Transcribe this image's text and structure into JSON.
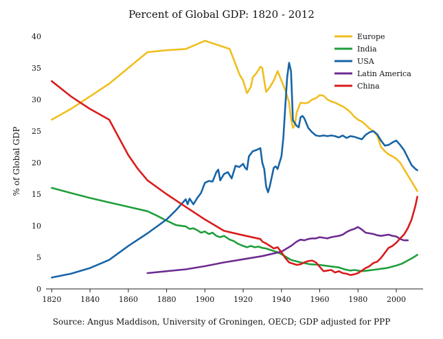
{
  "chart_data": {
    "type": "line",
    "title": "Percent of Global GDP: 1820 - 2012",
    "xlabel": "",
    "ylabel": "% of Global GDP",
    "source": "Source: Angus Maddison, University of Groningen, OECD; GDP adjusted for PPP",
    "xlim": [
      1817,
      2014
    ],
    "ylim": [
      0,
      40
    ],
    "x_ticks": [
      1820,
      1840,
      1860,
      1880,
      1900,
      1920,
      1940,
      1960,
      1980,
      2000
    ],
    "y_ticks": [
      0,
      5,
      10,
      15,
      20,
      25,
      30,
      35,
      40
    ],
    "grid": false,
    "legend_position": "top-right",
    "series": [
      {
        "name": "Europe",
        "color": "#f0be1e",
        "points": [
          [
            1820,
            26.8
          ],
          [
            1830,
            28.5
          ],
          [
            1840,
            30.5
          ],
          [
            1850,
            32.5
          ],
          [
            1860,
            35
          ],
          [
            1870,
            37.5
          ],
          [
            1880,
            37.8
          ],
          [
            1890,
            38
          ],
          [
            1900,
            39.3
          ],
          [
            1913,
            38
          ],
          [
            1918,
            34
          ],
          [
            1920,
            33
          ],
          [
            1922,
            31
          ],
          [
            1924,
            32
          ],
          [
            1925,
            33.5
          ],
          [
            1927,
            34.2
          ],
          [
            1929,
            35.2
          ],
          [
            1930,
            35
          ],
          [
            1931,
            33
          ],
          [
            1932,
            31.2
          ],
          [
            1934,
            32
          ],
          [
            1936,
            33
          ],
          [
            1938,
            34.5
          ],
          [
            1940,
            33
          ],
          [
            1942,
            31.5
          ],
          [
            1944,
            29.5
          ],
          [
            1945,
            27
          ],
          [
            1946,
            25.5
          ],
          [
            1947,
            26
          ],
          [
            1948,
            28
          ],
          [
            1950,
            29.5
          ],
          [
            1952,
            29.4
          ],
          [
            1954,
            29.5
          ],
          [
            1956,
            30
          ],
          [
            1958,
            30.2
          ],
          [
            1960,
            30.7
          ],
          [
            1962,
            30.6
          ],
          [
            1964,
            30
          ],
          [
            1966,
            29.7
          ],
          [
            1968,
            29.5
          ],
          [
            1970,
            29.2
          ],
          [
            1972,
            28.9
          ],
          [
            1974,
            28.5
          ],
          [
            1976,
            28
          ],
          [
            1978,
            27.3
          ],
          [
            1980,
            26.8
          ],
          [
            1982,
            26.5
          ],
          [
            1984,
            26
          ],
          [
            1986,
            25.4
          ],
          [
            1988,
            25
          ],
          [
            1990,
            24.3
          ],
          [
            1992,
            22.5
          ],
          [
            1994,
            21.8
          ],
          [
            1996,
            21.3
          ],
          [
            1998,
            21
          ],
          [
            2000,
            20.6
          ],
          [
            2002,
            20
          ],
          [
            2004,
            19
          ],
          [
            2006,
            18
          ],
          [
            2008,
            17
          ],
          [
            2010,
            16
          ],
          [
            2011,
            15.5
          ]
        ]
      },
      {
        "name": "India",
        "color": "#1e9e3c",
        "points": [
          [
            1820,
            16
          ],
          [
            1830,
            15.2
          ],
          [
            1840,
            14.4
          ],
          [
            1850,
            13.7
          ],
          [
            1860,
            13
          ],
          [
            1870,
            12.3
          ],
          [
            1875,
            11.6
          ],
          [
            1880,
            10.8
          ],
          [
            1885,
            10.1
          ],
          [
            1890,
            9.9
          ],
          [
            1892,
            9.5
          ],
          [
            1894,
            9.6
          ],
          [
            1896,
            9.3
          ],
          [
            1898,
            8.9
          ],
          [
            1900,
            9.1
          ],
          [
            1902,
            8.7
          ],
          [
            1904,
            8.9
          ],
          [
            1906,
            8.4
          ],
          [
            1908,
            8.2
          ],
          [
            1910,
            8.4
          ],
          [
            1913,
            7.8
          ],
          [
            1915,
            7.6
          ],
          [
            1917,
            7.2
          ],
          [
            1920,
            6.8
          ],
          [
            1922,
            6.6
          ],
          [
            1924,
            6.8
          ],
          [
            1926,
            6.6
          ],
          [
            1928,
            6.7
          ],
          [
            1930,
            6.5
          ],
          [
            1932,
            6.4
          ],
          [
            1934,
            6.2
          ],
          [
            1936,
            6
          ],
          [
            1938,
            5.8
          ],
          [
            1940,
            5.5
          ],
          [
            1945,
            4.6
          ],
          [
            1950,
            4.2
          ],
          [
            1955,
            3.9
          ],
          [
            1960,
            3.8
          ],
          [
            1965,
            3.6
          ],
          [
            1970,
            3.4
          ],
          [
            1973,
            3.1
          ],
          [
            1976,
            2.9
          ],
          [
            1978,
            3
          ],
          [
            1980,
            2.9
          ],
          [
            1982,
            2.8
          ],
          [
            1985,
            2.9
          ],
          [
            1990,
            3.1
          ],
          [
            1995,
            3.3
          ],
          [
            2000,
            3.7
          ],
          [
            2003,
            4
          ],
          [
            2006,
            4.5
          ],
          [
            2009,
            5
          ],
          [
            2011,
            5.4
          ]
        ]
      },
      {
        "name": "USA",
        "color": "#1764a6",
        "points": [
          [
            1820,
            1.8
          ],
          [
            1830,
            2.4
          ],
          [
            1840,
            3.3
          ],
          [
            1850,
            4.6
          ],
          [
            1860,
            6.8
          ],
          [
            1870,
            8.8
          ],
          [
            1880,
            11
          ],
          [
            1885,
            12.5
          ],
          [
            1890,
            14.2
          ],
          [
            1891,
            13.4
          ],
          [
            1892,
            14.3
          ],
          [
            1894,
            13.4
          ],
          [
            1896,
            14.4
          ],
          [
            1898,
            15.2
          ],
          [
            1900,
            16.8
          ],
          [
            1902,
            17.1
          ],
          [
            1904,
            17
          ],
          [
            1906,
            18.5
          ],
          [
            1907,
            18.9
          ],
          [
            1908,
            17.2
          ],
          [
            1910,
            18.2
          ],
          [
            1912,
            18.5
          ],
          [
            1914,
            17.5
          ],
          [
            1916,
            19.5
          ],
          [
            1918,
            19.3
          ],
          [
            1920,
            19.8
          ],
          [
            1921,
            19.2
          ],
          [
            1922,
            18.9
          ],
          [
            1923,
            21
          ],
          [
            1925,
            21.8
          ],
          [
            1927,
            22
          ],
          [
            1929,
            22.3
          ],
          [
            1930,
            20
          ],
          [
            1931,
            19
          ],
          [
            1932,
            16.2
          ],
          [
            1933,
            15.3
          ],
          [
            1934,
            16.4
          ],
          [
            1936,
            19.2
          ],
          [
            1937,
            19.4
          ],
          [
            1938,
            19
          ],
          [
            1939,
            20
          ],
          [
            1940,
            21
          ],
          [
            1941,
            24
          ],
          [
            1942,
            29
          ],
          [
            1943,
            33.5
          ],
          [
            1944,
            35.8
          ],
          [
            1945,
            34.5
          ],
          [
            1946,
            26.7
          ],
          [
            1948,
            25.8
          ],
          [
            1949,
            25.6
          ],
          [
            1950,
            27.2
          ],
          [
            1951,
            27.4
          ],
          [
            1952,
            27
          ],
          [
            1954,
            25.5
          ],
          [
            1956,
            24.8
          ],
          [
            1958,
            24.3
          ],
          [
            1960,
            24.2
          ],
          [
            1962,
            24.3
          ],
          [
            1964,
            24.2
          ],
          [
            1966,
            24.3
          ],
          [
            1968,
            24.2
          ],
          [
            1970,
            24
          ],
          [
            1972,
            24.3
          ],
          [
            1974,
            23.9
          ],
          [
            1976,
            24.2
          ],
          [
            1978,
            24.1
          ],
          [
            1980,
            23.9
          ],
          [
            1982,
            23.7
          ],
          [
            1984,
            24.4
          ],
          [
            1986,
            24.8
          ],
          [
            1988,
            25
          ],
          [
            1990,
            24.5
          ],
          [
            1992,
            23.5
          ],
          [
            1994,
            22.7
          ],
          [
            1996,
            22.8
          ],
          [
            1998,
            23.2
          ],
          [
            2000,
            23.5
          ],
          [
            2002,
            22.8
          ],
          [
            2004,
            22
          ],
          [
            2006,
            20.8
          ],
          [
            2008,
            19.6
          ],
          [
            2010,
            19
          ],
          [
            2011,
            18.8
          ]
        ]
      },
      {
        "name": "Latin America",
        "color": "#6c2b91",
        "points": [
          [
            1870,
            2.5
          ],
          [
            1880,
            2.8
          ],
          [
            1890,
            3.1
          ],
          [
            1900,
            3.6
          ],
          [
            1910,
            4.2
          ],
          [
            1920,
            4.7
          ],
          [
            1930,
            5.2
          ],
          [
            1940,
            5.9
          ],
          [
            1945,
            6.8
          ],
          [
            1948,
            7.5
          ],
          [
            1950,
            7.8
          ],
          [
            1952,
            7.7
          ],
          [
            1954,
            7.9
          ],
          [
            1956,
            8
          ],
          [
            1958,
            8
          ],
          [
            1960,
            8.2
          ],
          [
            1962,
            8.1
          ],
          [
            1964,
            8
          ],
          [
            1966,
            8.2
          ],
          [
            1968,
            8.3
          ],
          [
            1970,
            8.4
          ],
          [
            1972,
            8.6
          ],
          [
            1974,
            9
          ],
          [
            1976,
            9.3
          ],
          [
            1978,
            9.5
          ],
          [
            1980,
            9.8
          ],
          [
            1982,
            9.4
          ],
          [
            1984,
            8.9
          ],
          [
            1986,
            8.8
          ],
          [
            1988,
            8.7
          ],
          [
            1990,
            8.5
          ],
          [
            1992,
            8.4
          ],
          [
            1994,
            8.5
          ],
          [
            1996,
            8.6
          ],
          [
            1998,
            8.4
          ],
          [
            2000,
            8.3
          ],
          [
            2002,
            7.9
          ],
          [
            2004,
            7.7
          ],
          [
            2006,
            7.7
          ]
        ]
      },
      {
        "name": "China",
        "color": "#d81b1b",
        "points": [
          [
            1820,
            32.9
          ],
          [
            1830,
            30.5
          ],
          [
            1840,
            28.5
          ],
          [
            1850,
            26.8
          ],
          [
            1855,
            24
          ],
          [
            1860,
            21.2
          ],
          [
            1865,
            19
          ],
          [
            1870,
            17.2
          ],
          [
            1880,
            15
          ],
          [
            1890,
            13
          ],
          [
            1900,
            11
          ],
          [
            1910,
            9.2
          ],
          [
            1920,
            8.5
          ],
          [
            1929,
            7.9
          ],
          [
            1930,
            7.5
          ],
          [
            1932,
            7.2
          ],
          [
            1934,
            6.8
          ],
          [
            1936,
            6.4
          ],
          [
            1938,
            6.6
          ],
          [
            1940,
            5.8
          ],
          [
            1942,
            4.9
          ],
          [
            1944,
            4.2
          ],
          [
            1946,
            4
          ],
          [
            1948,
            3.8
          ],
          [
            1950,
            3.9
          ],
          [
            1952,
            4.2
          ],
          [
            1954,
            4.4
          ],
          [
            1956,
            4.5
          ],
          [
            1958,
            4.2
          ],
          [
            1960,
            3.5
          ],
          [
            1962,
            2.8
          ],
          [
            1964,
            2.9
          ],
          [
            1966,
            3
          ],
          [
            1968,
            2.6
          ],
          [
            1970,
            2.8
          ],
          [
            1972,
            2.5
          ],
          [
            1974,
            2.4
          ],
          [
            1976,
            2.2
          ],
          [
            1978,
            2.3
          ],
          [
            1980,
            2.5
          ],
          [
            1982,
            2.9
          ],
          [
            1984,
            3.3
          ],
          [
            1986,
            3.6
          ],
          [
            1988,
            4.1
          ],
          [
            1990,
            4.3
          ],
          [
            1992,
            4.9
          ],
          [
            1994,
            5.7
          ],
          [
            1996,
            6.5
          ],
          [
            1998,
            6.8
          ],
          [
            2000,
            7.3
          ],
          [
            2002,
            8
          ],
          [
            2004,
            8.6
          ],
          [
            2006,
            9.6
          ],
          [
            2008,
            11
          ],
          [
            2010,
            13.2
          ],
          [
            2011,
            14.6
          ]
        ]
      }
    ]
  }
}
